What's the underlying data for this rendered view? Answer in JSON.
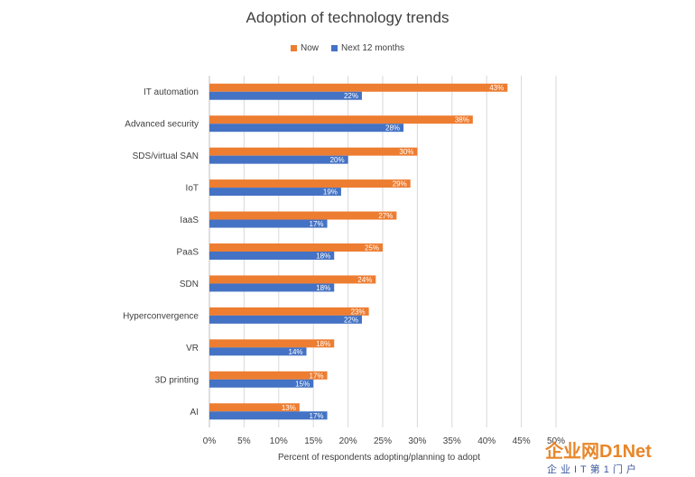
{
  "chart_data": {
    "type": "bar",
    "orientation": "horizontal",
    "title": "Adoption of technology trends",
    "xlabel": "Percent of respondents adopting/planning to adopt",
    "ylabel": "",
    "categories": [
      "IT automation",
      "Advanced security",
      "SDS/virtual SAN",
      "IoT",
      "IaaS",
      "PaaS",
      "SDN",
      "Hyperconvergence",
      "VR",
      "3D printing",
      "AI"
    ],
    "series": [
      {
        "name": "Now",
        "color": "#ed7d31",
        "values": [
          43,
          38,
          30,
          29,
          27,
          25,
          24,
          23,
          18,
          17,
          13
        ]
      },
      {
        "name": "Next 12 months",
        "color": "#4472c4",
        "values": [
          22,
          28,
          20,
          19,
          17,
          18,
          18,
          22,
          14,
          15,
          17
        ]
      }
    ],
    "xlim": [
      0,
      50
    ],
    "xticks": [
      "0%",
      "5%",
      "10%",
      "15%",
      "20%",
      "25%",
      "30%",
      "35%",
      "40%",
      "45%",
      "50%"
    ],
    "value_suffix": "%",
    "grid": true,
    "legend_position": "top"
  },
  "watermark": {
    "main": "企业网D1Net",
    "sub": "企业IT第1门户"
  }
}
